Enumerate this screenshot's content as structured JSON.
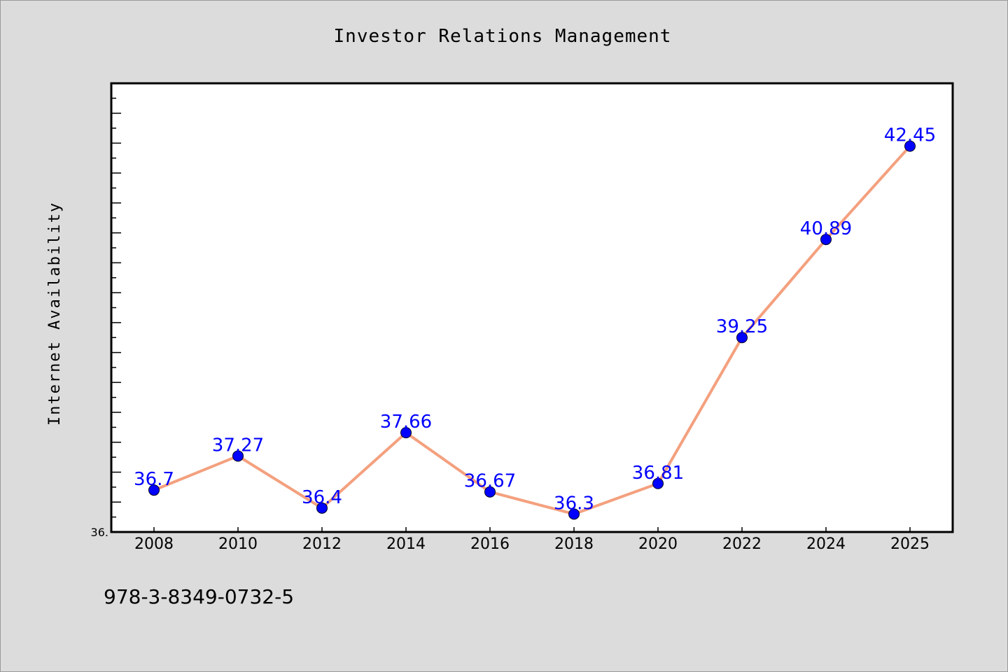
{
  "chart_data": {
    "type": "line",
    "title": "Investor Relations Management",
    "xlabel": "",
    "ylabel": "Internet Availability",
    "categories": [
      "2008",
      "2010",
      "2012",
      "2014",
      "2016",
      "2018",
      "2020",
      "2022",
      "2024",
      "2025"
    ],
    "series": [
      {
        "values": [
          36.7,
          37.27,
          36.4,
          37.66,
          36.67,
          36.3,
          36.81,
          39.25,
          40.89,
          42.45
        ],
        "data_labels": [
          "36.7",
          "37.27",
          "36.4",
          "37.66",
          "36.67",
          "36.3",
          "36.81",
          "39.25",
          "40.89",
          "42.45"
        ]
      }
    ],
    "ylim": [
      36.0,
      43.5
    ],
    "ytick_label": "36.",
    "grid": false,
    "legend": "none",
    "colors": {
      "line": "#f4a07e",
      "marker": "#0000ff",
      "data_label": "#0000ff",
      "plot_background": "#ffffff",
      "page_background": "#dcdcdc"
    }
  },
  "footer": {
    "isbn": "978-3-8349-0732-5"
  }
}
